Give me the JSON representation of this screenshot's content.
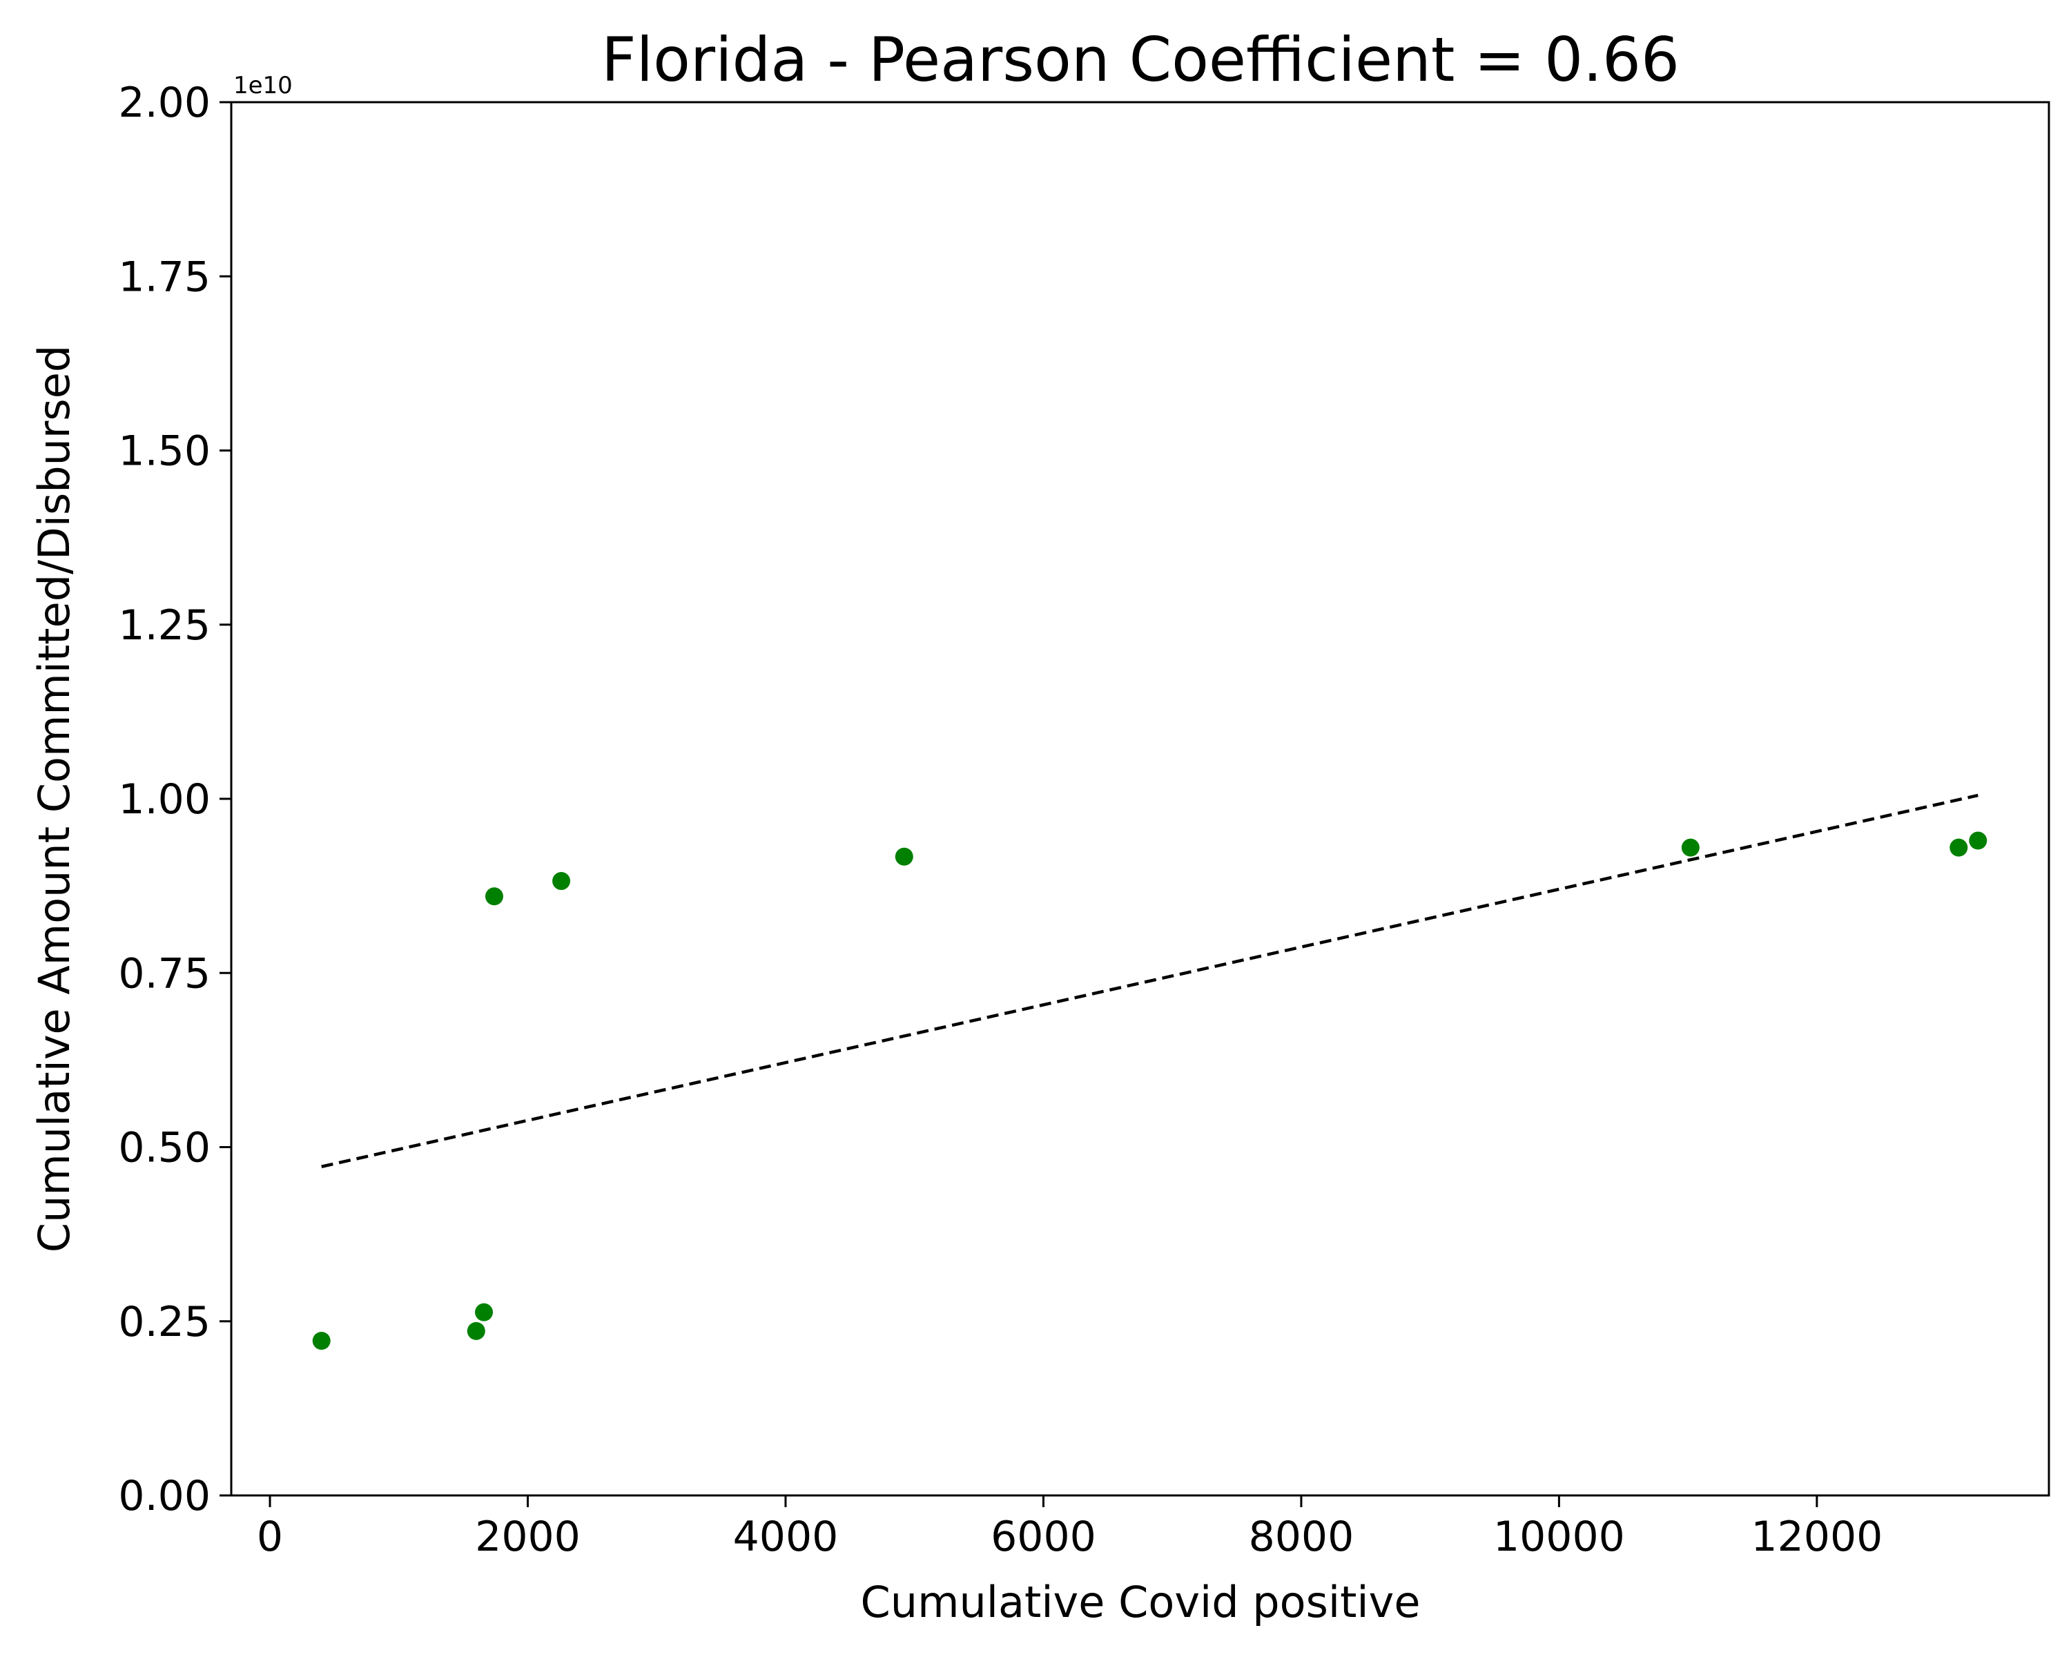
{
  "chart_data": {
    "type": "scatter",
    "title": "Florida - Pearson Coefficient = 0.66",
    "xlabel": "Cumulative Covid positive",
    "ylabel": "Cumulative Amount Committed/Disbursed",
    "y_offset_label": "1e10",
    "xlim": [
      -300,
      13800
    ],
    "ylim": [
      0,
      2.0
    ],
    "x_ticks": [
      0,
      2000,
      4000,
      6000,
      8000,
      10000,
      12000
    ],
    "x_tick_labels": [
      "0",
      "2000",
      "4000",
      "6000",
      "8000",
      "10000",
      "12000"
    ],
    "y_ticks": [
      0,
      0.25,
      0.5,
      0.75,
      1.0,
      1.25,
      1.5,
      1.75,
      2.0
    ],
    "y_tick_labels": [
      "0.00",
      "0.25",
      "0.50",
      "0.75",
      "1.00",
      "1.25",
      "1.50",
      "1.75",
      "2.00"
    ],
    "grid": false,
    "points": [
      {
        "x": 400,
        "y": 0.222
      },
      {
        "x": 1600,
        "y": 0.236
      },
      {
        "x": 1660,
        "y": 0.263
      },
      {
        "x": 1740,
        "y": 0.86
      },
      {
        "x": 2260,
        "y": 0.882
      },
      {
        "x": 4920,
        "y": 0.917
      },
      {
        "x": 11020,
        "y": 0.93
      },
      {
        "x": 13100,
        "y": 0.93
      },
      {
        "x": 13250,
        "y": 0.94
      }
    ],
    "point_color": "#008000",
    "trendline": {
      "style": "dashed",
      "color": "#000000",
      "points": [
        {
          "x": 400,
          "y": 0.472
        },
        {
          "x": 13250,
          "y": 1.005
        }
      ]
    }
  }
}
